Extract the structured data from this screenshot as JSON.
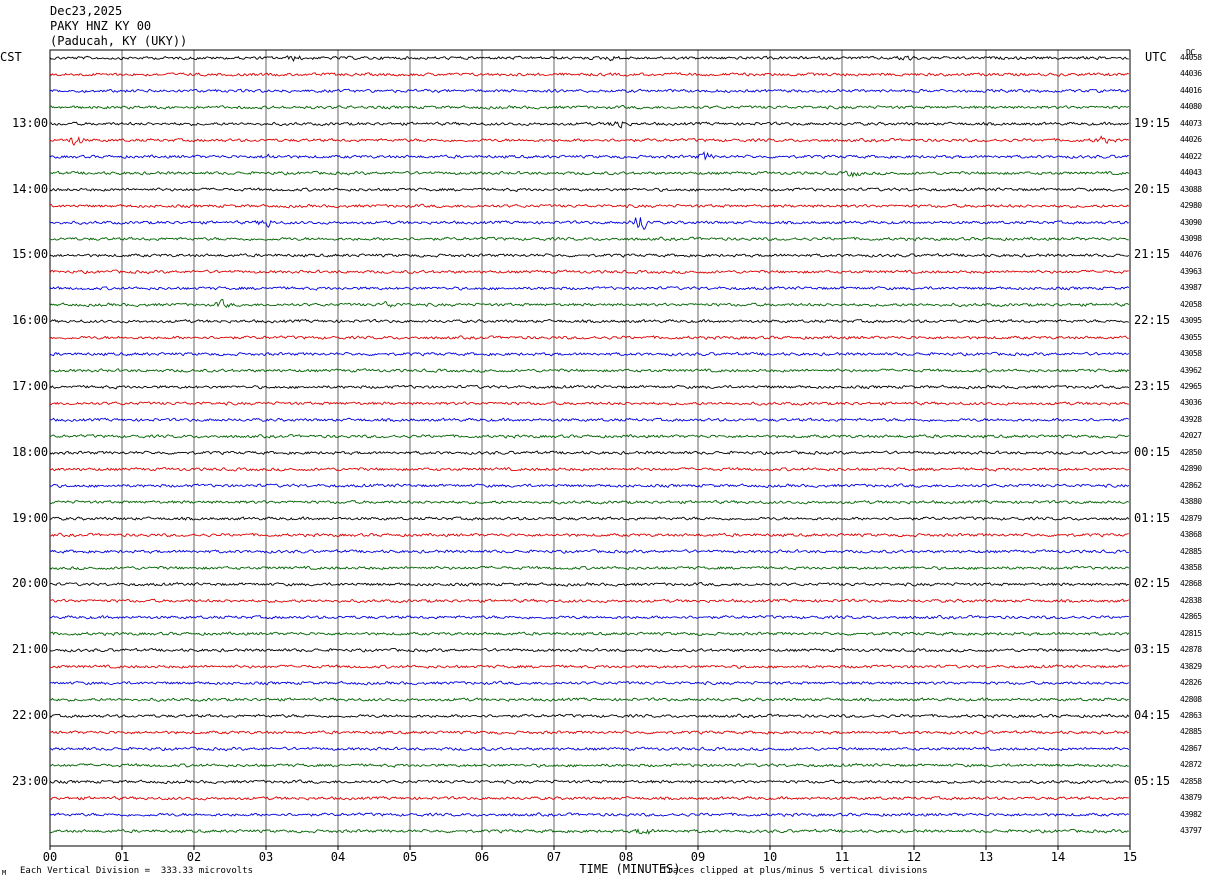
{
  "header": {
    "date": "Dec23,2025",
    "station": "PAKY HNZ KY 00",
    "location": "(Paducah, KY (UKY))"
  },
  "left_axis_label": "CST",
  "right_axis_label": "UTC",
  "right_top_mark": "DC",
  "colors": [
    "#000000",
    "#dd0000",
    "#0000dd",
    "#006400"
  ],
  "footer": {
    "scale_note": "Each Vertical Division =  333.33 microvolts",
    "corner_mark": "M",
    "clip_note": "Traces clipped at plus/minus 5 vertical divisions"
  },
  "chart_data": {
    "type": "line",
    "title": "",
    "xlabel": "TIME (MINUTES)",
    "ylabel": "",
    "xlim": [
      0,
      15
    ],
    "x_ticks": [
      "00",
      "01",
      "02",
      "03",
      "04",
      "05",
      "06",
      "07",
      "08",
      "09",
      "10",
      "11",
      "12",
      "13",
      "14",
      "15"
    ],
    "rows_count": 48,
    "local_time_labels": [
      {
        "row": 4,
        "text": "13:00"
      },
      {
        "row": 8,
        "text": "14:00"
      },
      {
        "row": 12,
        "text": "15:00"
      },
      {
        "row": 16,
        "text": "16:00"
      },
      {
        "row": 20,
        "text": "17:00"
      },
      {
        "row": 24,
        "text": "18:00"
      },
      {
        "row": 28,
        "text": "19:00"
      },
      {
        "row": 32,
        "text": "20:00"
      },
      {
        "row": 36,
        "text": "21:00"
      },
      {
        "row": 40,
        "text": "22:00"
      },
      {
        "row": 44,
        "text": "23:00"
      }
    ],
    "utc_time_labels": [
      {
        "row": 4,
        "text": "19:15"
      },
      {
        "row": 8,
        "text": "20:15"
      },
      {
        "row": 12,
        "text": "21:15"
      },
      {
        "row": 16,
        "text": "22:15"
      },
      {
        "row": 20,
        "text": "23:15"
      },
      {
        "row": 24,
        "text": "00:15"
      },
      {
        "row": 28,
        "text": "01:15"
      },
      {
        "row": 32,
        "text": "02:15"
      },
      {
        "row": 36,
        "text": "03:15"
      },
      {
        "row": 40,
        "text": "04:15"
      },
      {
        "row": 44,
        "text": "05:15"
      }
    ],
    "row_dc_values": [
      "44058",
      "44036",
      "44016",
      "44080",
      "44073",
      "44026",
      "44022",
      "44043",
      "43088",
      "42980",
      "43090",
      "43098",
      "44076",
      "43963",
      "43987",
      "42058",
      "43095",
      "43055",
      "43058",
      "43962",
      "42965",
      "43036",
      "43928",
      "42027",
      "42850",
      "42890",
      "42862",
      "43880",
      "42879",
      "43868",
      "42885",
      "43858",
      "42868",
      "42838",
      "42865",
      "42815",
      "42878",
      "43829",
      "42826",
      "42808",
      "42863",
      "42885",
      "42867",
      "42872",
      "42858",
      "43879",
      "43982",
      "43797"
    ],
    "events": [
      {
        "row": 0,
        "minute": 3.4,
        "amp": 0.6
      },
      {
        "row": 0,
        "minute": 7.8,
        "amp": 0.5
      },
      {
        "row": 0,
        "minute": 11.9,
        "amp": 0.8
      },
      {
        "row": 4,
        "minute": 7.9,
        "amp": 1.4
      },
      {
        "row": 5,
        "minute": 0.35,
        "amp": 1.5
      },
      {
        "row": 5,
        "minute": 14.6,
        "amp": 1.0
      },
      {
        "row": 6,
        "minute": 3.05,
        "amp": 0.6
      },
      {
        "row": 6,
        "minute": 9.1,
        "amp": 1.1
      },
      {
        "row": 7,
        "minute": 11.15,
        "amp": 0.9
      },
      {
        "row": 10,
        "minute": 3.0,
        "amp": 1.3
      },
      {
        "row": 10,
        "minute": 8.2,
        "amp": 2.8
      },
      {
        "row": 15,
        "minute": 2.4,
        "amp": 1.0
      },
      {
        "row": 15,
        "minute": 4.7,
        "amp": 0.8
      },
      {
        "row": 47,
        "minute": 8.25,
        "amp": 1.2
      }
    ]
  }
}
